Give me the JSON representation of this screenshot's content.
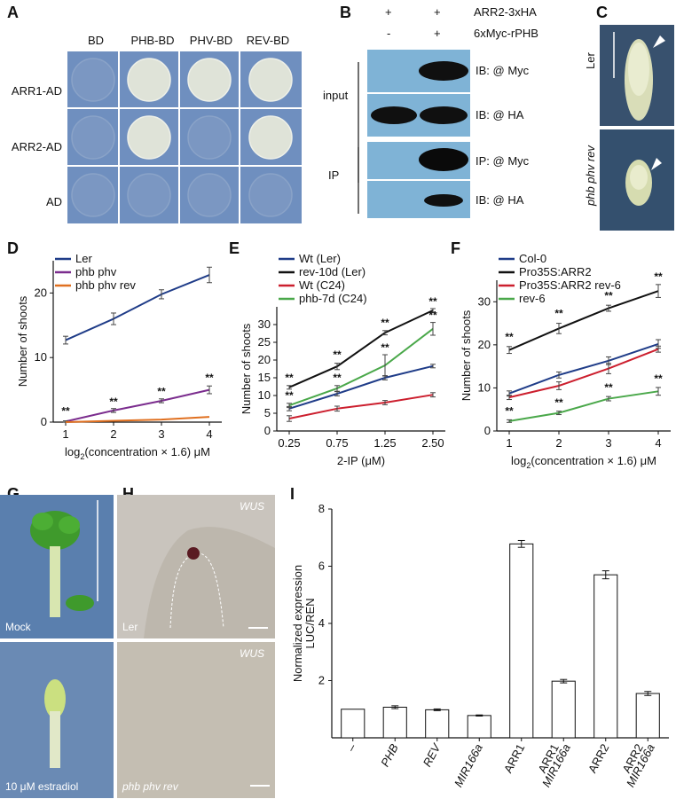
{
  "panels": {
    "A": "A",
    "B": "B",
    "C": "C",
    "D": "D",
    "E": "E",
    "F": "F",
    "G": "G",
    "H": "H",
    "I": "I"
  },
  "panelA": {
    "columns": [
      "BD",
      "PHB-BD",
      "PHV-BD",
      "REV-BD"
    ],
    "rows": [
      "ARR1-AD",
      "ARR2-AD",
      "AD"
    ],
    "growth": [
      [
        0,
        1,
        1,
        1
      ],
      [
        0,
        1,
        0,
        1
      ],
      [
        0,
        0,
        0,
        0
      ]
    ]
  },
  "panelB": {
    "row1_label": "ARR2-3xHA",
    "row1_signs": [
      "+",
      "+"
    ],
    "row2_label": "6xMyc-rPHB",
    "row2_signs": [
      "-",
      "+"
    ],
    "group_input": "input",
    "group_ip": "IP",
    "blots": [
      "IB: @ Myc",
      "IB: @ HA",
      "IP: @ Myc",
      "IB: @ HA"
    ]
  },
  "panelC": {
    "top_label": "Ler",
    "bottom_label": "phb phv rev"
  },
  "panelD": {
    "chart_data": {
      "type": "line",
      "x": [
        1,
        2,
        3,
        4
      ],
      "xlabel_main": "log",
      "xlabel_sub": "2",
      "xlabel_rest": "(concentration × 1.6) μM",
      "ylabel": "Number of shoots",
      "ylim": [
        0,
        25
      ],
      "yticks": [
        0,
        10,
        20
      ],
      "series": [
        {
          "name": "Ler",
          "color": "#1f3c88",
          "values": [
            12.7,
            16,
            19.8,
            22.8
          ],
          "err": [
            0.6,
            0.9,
            0.7,
            1.2
          ]
        },
        {
          "name": "phb phv",
          "color": "#7b2d8e",
          "values": [
            0.1,
            1.8,
            3.3,
            5
          ],
          "err": [
            0.1,
            0.3,
            0.3,
            0.6
          ]
        },
        {
          "name": "phb phv rev",
          "color": "#e07020",
          "values": [
            0,
            0.2,
            0.4,
            0.8
          ],
          "err": [
            0,
            0,
            0,
            0
          ]
        }
      ],
      "sig": [
        {
          "x": 1,
          "y": 1.2,
          "text": "**"
        },
        {
          "x": 2,
          "y": 2.6,
          "text": "**"
        },
        {
          "x": 3,
          "y": 4.2,
          "text": "**"
        },
        {
          "x": 4,
          "y": 6.3,
          "text": "**"
        }
      ]
    }
  },
  "panelE": {
    "chart_data": {
      "type": "line",
      "categories": [
        "0.25",
        "0.75",
        "1.25",
        "2.50"
      ],
      "xlabel": "2-IP (μM)",
      "ylabel": "Number of shoots",
      "ylim": [
        0,
        35
      ],
      "yticks": [
        0,
        5,
        10,
        15,
        20,
        25,
        30
      ],
      "series": [
        {
          "name": "Wt (Ler)",
          "color": "#1f3c88",
          "values": [
            6.3,
            10.5,
            15,
            18.3
          ],
          "err": [
            0.6,
            0.6,
            0.6,
            0.5
          ]
        },
        {
          "name": "rev-10d (Ler)",
          "color": "#111111",
          "values": [
            12.3,
            18.2,
            27.7,
            34
          ],
          "err": [
            0.5,
            0.9,
            0.6,
            0.5
          ]
        },
        {
          "name": "Wt (C24)",
          "color": "#cc1f2e",
          "values": [
            3.5,
            6.3,
            8,
            10.2
          ],
          "err": [
            0.8,
            0.7,
            0.6,
            0.6
          ]
        },
        {
          "name": "phb-7d (C24)",
          "color": "#4aa84a",
          "values": [
            7.2,
            12,
            18.5,
            28.8
          ],
          "err": [
            0.6,
            0.8,
            3,
            1.8
          ]
        }
      ],
      "sig": [
        {
          "i": 0,
          "y": 14,
          "text": "**"
        },
        {
          "i": 0,
          "y": 9,
          "text": "**"
        },
        {
          "i": 1,
          "y": 20.5,
          "text": "**"
        },
        {
          "i": 1,
          "y": 14,
          "text": "**"
        },
        {
          "i": 2,
          "y": 29.5,
          "text": "**"
        },
        {
          "i": 2,
          "y": 22.5,
          "text": "**"
        },
        {
          "i": 3,
          "y": 35.5,
          "text": "**"
        },
        {
          "i": 3,
          "y": 31.6,
          "text": "**"
        }
      ]
    }
  },
  "panelF": {
    "chart_data": {
      "type": "line",
      "x": [
        1,
        2,
        3,
        4
      ],
      "xlabel_main": "log",
      "xlabel_sub": "2",
      "xlabel_rest": "(concentration × 1.6) μM",
      "ylabel": "Number of shoots",
      "ylim": [
        0,
        35
      ],
      "yticks": [
        0,
        10,
        20,
        30
      ],
      "series": [
        {
          "name": "Col-0",
          "color": "#1f3c88",
          "values": [
            8.7,
            13,
            16.3,
            20.2
          ],
          "err": [
            0.6,
            0.7,
            0.9,
            1
          ]
        },
        {
          "name": "Pro35S:ARR2",
          "color": "#111111",
          "values": [
            18.8,
            23.8,
            28.5,
            32.5
          ],
          "err": [
            0.8,
            1.2,
            0.7,
            1.5
          ]
        },
        {
          "name": "Pro35S:ARR2 rev-6",
          "color": "#cc1f2e",
          "values": [
            7.8,
            10.5,
            14.5,
            19
          ],
          "err": [
            0.5,
            0.9,
            1.2,
            0.7
          ]
        },
        {
          "name": "rev-6",
          "color": "#4aa84a",
          "values": [
            2.3,
            4.2,
            7.5,
            9.2
          ],
          "err": [
            0.3,
            0.4,
            0.5,
            0.9
          ]
        }
      ],
      "sig": [
        {
          "x": 1,
          "y": 21,
          "text": "**"
        },
        {
          "x": 1,
          "y": 3.8,
          "text": "**"
        },
        {
          "x": 2,
          "y": 26.5,
          "text": "**"
        },
        {
          "x": 2,
          "y": 5.8,
          "text": "**"
        },
        {
          "x": 3,
          "y": 30.6,
          "text": "**"
        },
        {
          "x": 3,
          "y": 9.3,
          "text": "**"
        },
        {
          "x": 4,
          "y": 35,
          "text": "**"
        },
        {
          "x": 4,
          "y": 11.3,
          "text": "**"
        }
      ]
    }
  },
  "panelG": {
    "top_label": "Mock",
    "bottom_label": "10 μM estradiol"
  },
  "panelH": {
    "top_gene": "WUS",
    "top_label": "Ler",
    "bottom_gene": "WUS",
    "bottom_label": "phb phv rev"
  },
  "panelI": {
    "chart_data": {
      "type": "bar",
      "categories": [
        "–",
        "PHB",
        "REV",
        "MIR166a",
        "ARR1",
        "ARR1 MIR166a",
        "ARR2",
        "ARR2 MIR166a"
      ],
      "values": [
        1,
        1.07,
        0.98,
        0.78,
        6.78,
        1.98,
        5.7,
        1.55
      ],
      "err": [
        0,
        0.05,
        0.03,
        0.02,
        0.12,
        0.06,
        0.14,
        0.07
      ],
      "ylabel_line1": "Normalized expression",
      "ylabel_line2": "LUC/REN",
      "ylim": [
        0,
        8
      ],
      "yticks": [
        2,
        4,
        6,
        8
      ]
    }
  }
}
